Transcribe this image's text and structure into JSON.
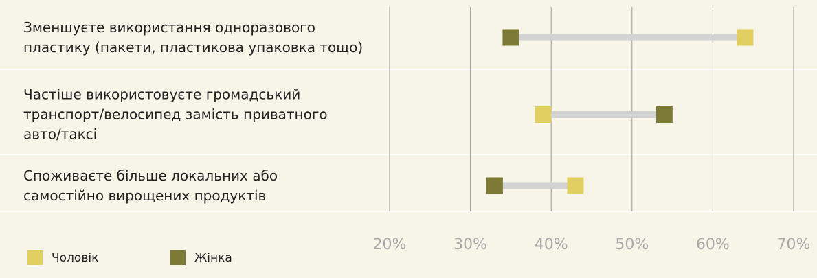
{
  "chart_data": {
    "type": "dumbbell",
    "categories": [
      "Зменшуєте використання одноразового\nпластику (пакети, пластикова упаковка тощо)",
      "Частіше використовуєте громадський\nтранспорт/велосипед замість приватного\nавто/таксі",
      "Споживаєте більше локальних або\nсамостійно вирощених продуктів"
    ],
    "series": [
      {
        "name": "Чоловік",
        "color": "#e2cf62",
        "values": [
          64,
          39,
          43
        ]
      },
      {
        "name": "Жінка",
        "color": "#7d7a38",
        "values": [
          35,
          54,
          33
        ]
      }
    ],
    "xlim": [
      20,
      70
    ],
    "xticks": [
      {
        "value": 20,
        "label": "20%"
      },
      {
        "value": 30,
        "label": "30%"
      },
      {
        "value": 40,
        "label": "40%"
      },
      {
        "value": 50,
        "label": "50%"
      },
      {
        "value": 60,
        "label": "60%"
      },
      {
        "value": 70,
        "label": "70%"
      }
    ],
    "grid": true
  }
}
